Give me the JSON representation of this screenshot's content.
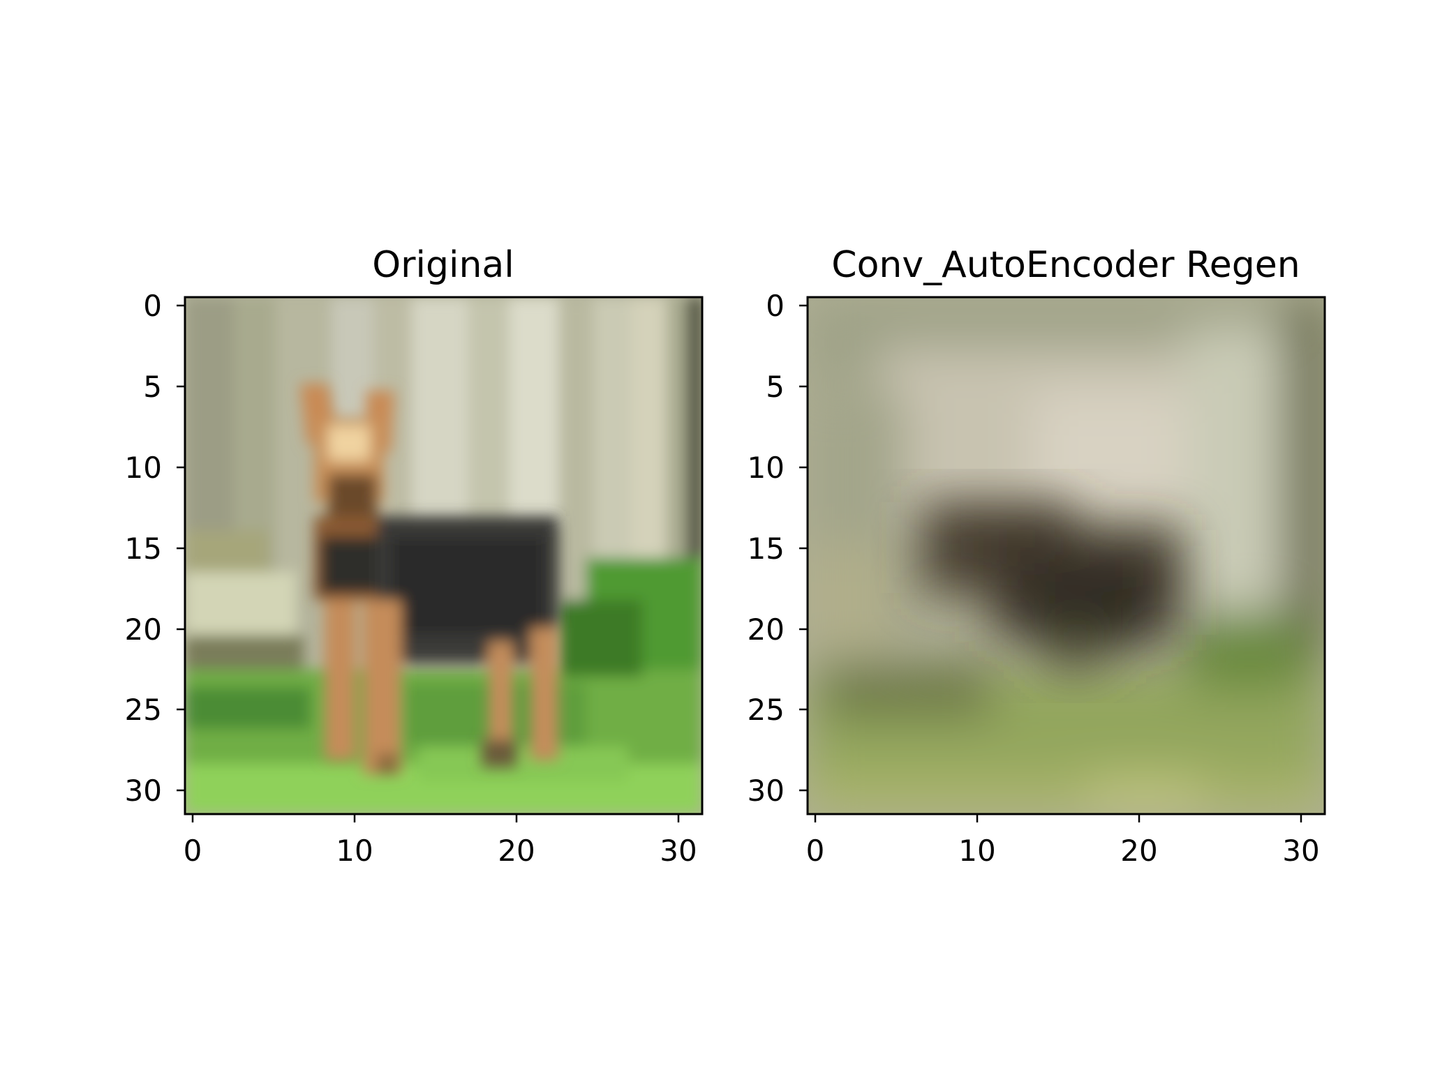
{
  "figure": {
    "panels": [
      {
        "title": "Original",
        "x_ticks": [
          "0",
          "10",
          "20",
          "30"
        ],
        "y_ticks": [
          "0",
          "5",
          "10",
          "15",
          "20",
          "25",
          "30"
        ],
        "image": "CIFAR-style 32x32 photo of a dog standing on grass in front of a wooden fence",
        "palette": {
          "fence_light": "#c9c9ae",
          "fence_dark": "#9c9d85",
          "post_dark": "#4a4c38",
          "grass": "#5fae3e",
          "grass_bright": "#8fd15a",
          "dog_tan": "#c98a55",
          "dog_dark": "#2e2e2b",
          "dog_body": "#3c3d3a"
        }
      },
      {
        "title": "Conv_AutoEncoder Regen",
        "x_ticks": [
          "0",
          "10",
          "20",
          "30"
        ],
        "y_ticks": [
          "0",
          "5",
          "10",
          "15",
          "20",
          "25",
          "30"
        ],
        "image": "Blurry autoencoder reconstruction of the dog image",
        "palette": {
          "bg_light": "#c8c3b0",
          "bg_mid": "#a9ab8c",
          "dark_blob": "#3d3529",
          "grass": "#8fa65a",
          "grass_dark": "#6f7f45",
          "edge_dark": "#55583a"
        }
      }
    ]
  }
}
